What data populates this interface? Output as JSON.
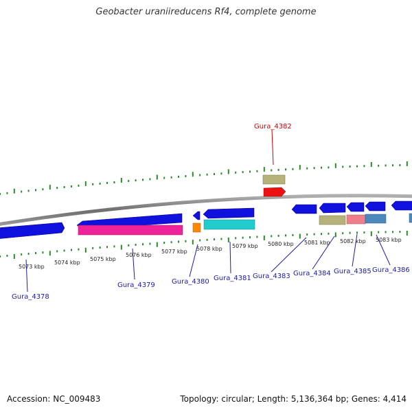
{
  "title": "Geobacter uraniireducens Rf4, complete genome",
  "footer": {
    "accession": "Accession: NC_009483",
    "summary": "Topology: circular; Length: 5,136,364 bp; Genes: 4,414"
  },
  "scale_ticks": [
    "5073 kbp",
    "5074 kbp",
    "5075 kbp",
    "5076 kbp",
    "5077 kbp",
    "5078 kbp",
    "5079 kbp",
    "5080 kbp",
    "5081 kbp",
    "5082 kbp",
    "5083 kbp"
  ],
  "gene_labels": [
    {
      "name": "Gura_4382",
      "color": "#cc0000"
    },
    {
      "name": "Gura_4378",
      "color": "#1a1aaa"
    },
    {
      "name": "Gura_4379",
      "color": "#1a1aaa"
    },
    {
      "name": "Gura_4380",
      "color": "#1a1aaa"
    },
    {
      "name": "Gura_4381",
      "color": "#1a1aaa"
    },
    {
      "name": "Gura_4383",
      "color": "#1a1aaa"
    },
    {
      "name": "Gura_4384",
      "color": "#1a1aaa"
    },
    {
      "name": "Gura_4385",
      "color": "#1a1aaa"
    },
    {
      "name": "Gura_4386",
      "color": "#1a1aaa"
    }
  ],
  "colors": {
    "backbone": "#7a7a7a",
    "tick": "#2a8a2a",
    "cds_forward": "#1111dd",
    "pink": "#ee2299",
    "cyan": "#22cccc",
    "orange": "#ff8800",
    "olive": "#b5b27a",
    "red": "#ee1111",
    "salmon": "#ee7f8a",
    "steelblue": "#4c88bb"
  }
}
